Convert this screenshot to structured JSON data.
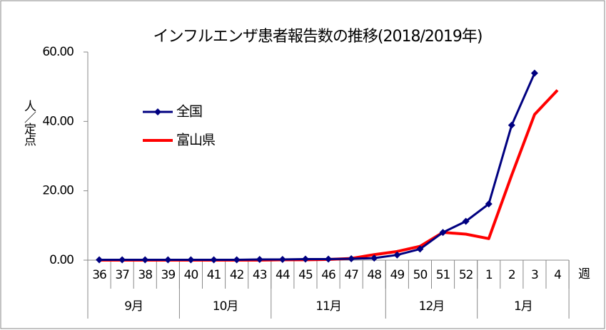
{
  "chart_data": {
    "type": "line",
    "title": "インフルエンザ患者報告数の推移(2018/2019年)",
    "y_label": "人／定点",
    "x_label": "週",
    "categories": [
      "36",
      "37",
      "38",
      "39",
      "40",
      "41",
      "42",
      "43",
      "44",
      "45",
      "46",
      "47",
      "48",
      "49",
      "50",
      "51",
      "52",
      "1",
      "2",
      "3",
      "4"
    ],
    "groups": [
      {
        "label": "9月",
        "size": 4
      },
      {
        "label": "10月",
        "size": 4
      },
      {
        "label": "11月",
        "size": 5
      },
      {
        "label": "12月",
        "size": 4
      },
      {
        "label": "1月",
        "size": 4
      }
    ],
    "series": [
      {
        "name": "全国",
        "color": "#000080",
        "marker": "diamond",
        "values": [
          0.1,
          0.1,
          0.1,
          0.1,
          0.1,
          0.1,
          0.1,
          0.2,
          0.2,
          0.3,
          0.3,
          0.4,
          0.6,
          1.5,
          3.2,
          8.0,
          11.2,
          16.2,
          38.9,
          53.9,
          null
        ]
      },
      {
        "name": "富山県",
        "color": "#ff0000",
        "values": [
          0.0,
          0.0,
          0.0,
          0.0,
          0.0,
          0.0,
          0.0,
          0.0,
          0.1,
          0.1,
          0.2,
          0.5,
          1.6,
          2.5,
          4.0,
          8.0,
          7.5,
          6.2,
          24.5,
          42.0,
          49.0
        ]
      }
    ],
    "ylim": [
      0,
      60
    ],
    "yticks": [
      {
        "value": 0,
        "label": "0.00"
      },
      {
        "value": 20,
        "label": "20.00"
      },
      {
        "value": 40,
        "label": "40.00"
      },
      {
        "value": 60,
        "label": "60.00"
      }
    ]
  }
}
